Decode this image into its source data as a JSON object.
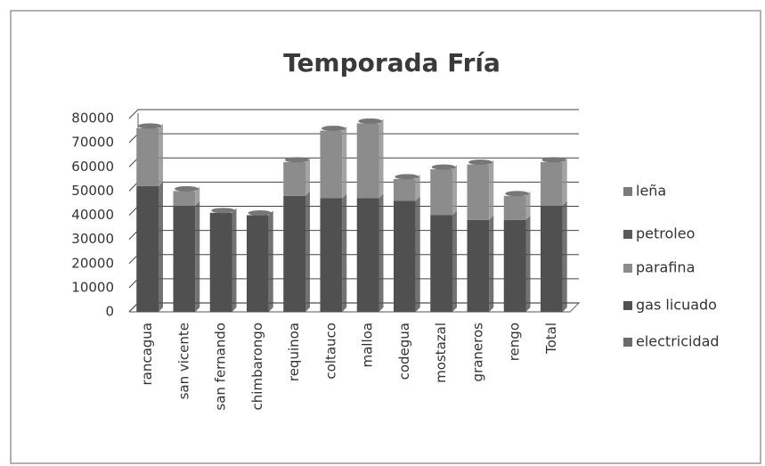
{
  "chart_data": {
    "type": "stacked_bar",
    "title": "Temporada Fría",
    "categories": [
      "rancagua",
      "san vicente",
      "san fernando",
      "chimbarongo",
      "requinoa",
      "coltauco",
      "malloa",
      "codegua",
      "mostazal",
      "graneros",
      "rengo",
      "Total"
    ],
    "series": [
      {
        "name": "electricidad",
        "color": "#6a6a6a",
        "values": [
          0,
          0,
          0,
          0,
          0,
          0,
          0,
          0,
          0,
          0,
          0,
          0
        ]
      },
      {
        "name": "gas licuado",
        "color": "#505050",
        "values": [
          52000,
          44000,
          41000,
          40000,
          48000,
          47000,
          47000,
          46000,
          40000,
          38000,
          38000,
          44000
        ]
      },
      {
        "name": "parafina",
        "color": "#8c8c8c",
        "values": [
          24000,
          6000,
          0,
          0,
          14000,
          28000,
          31000,
          9000,
          19000,
          23000,
          10000,
          18000
        ]
      },
      {
        "name": "petroleo",
        "color": "#5a5a5a",
        "values": [
          0,
          0,
          0,
          0,
          0,
          0,
          0,
          0,
          0,
          0,
          0,
          0
        ]
      },
      {
        "name": "leña",
        "color": "#7a7a7a",
        "values": [
          0,
          0,
          0,
          0,
          0,
          0,
          0,
          0,
          0,
          0,
          0,
          0
        ]
      }
    ],
    "ylim": [
      0,
      80000
    ],
    "yticks": [
      0,
      10000,
      20000,
      30000,
      40000,
      50000,
      60000,
      70000,
      80000
    ],
    "grid": true,
    "legend": "right"
  }
}
